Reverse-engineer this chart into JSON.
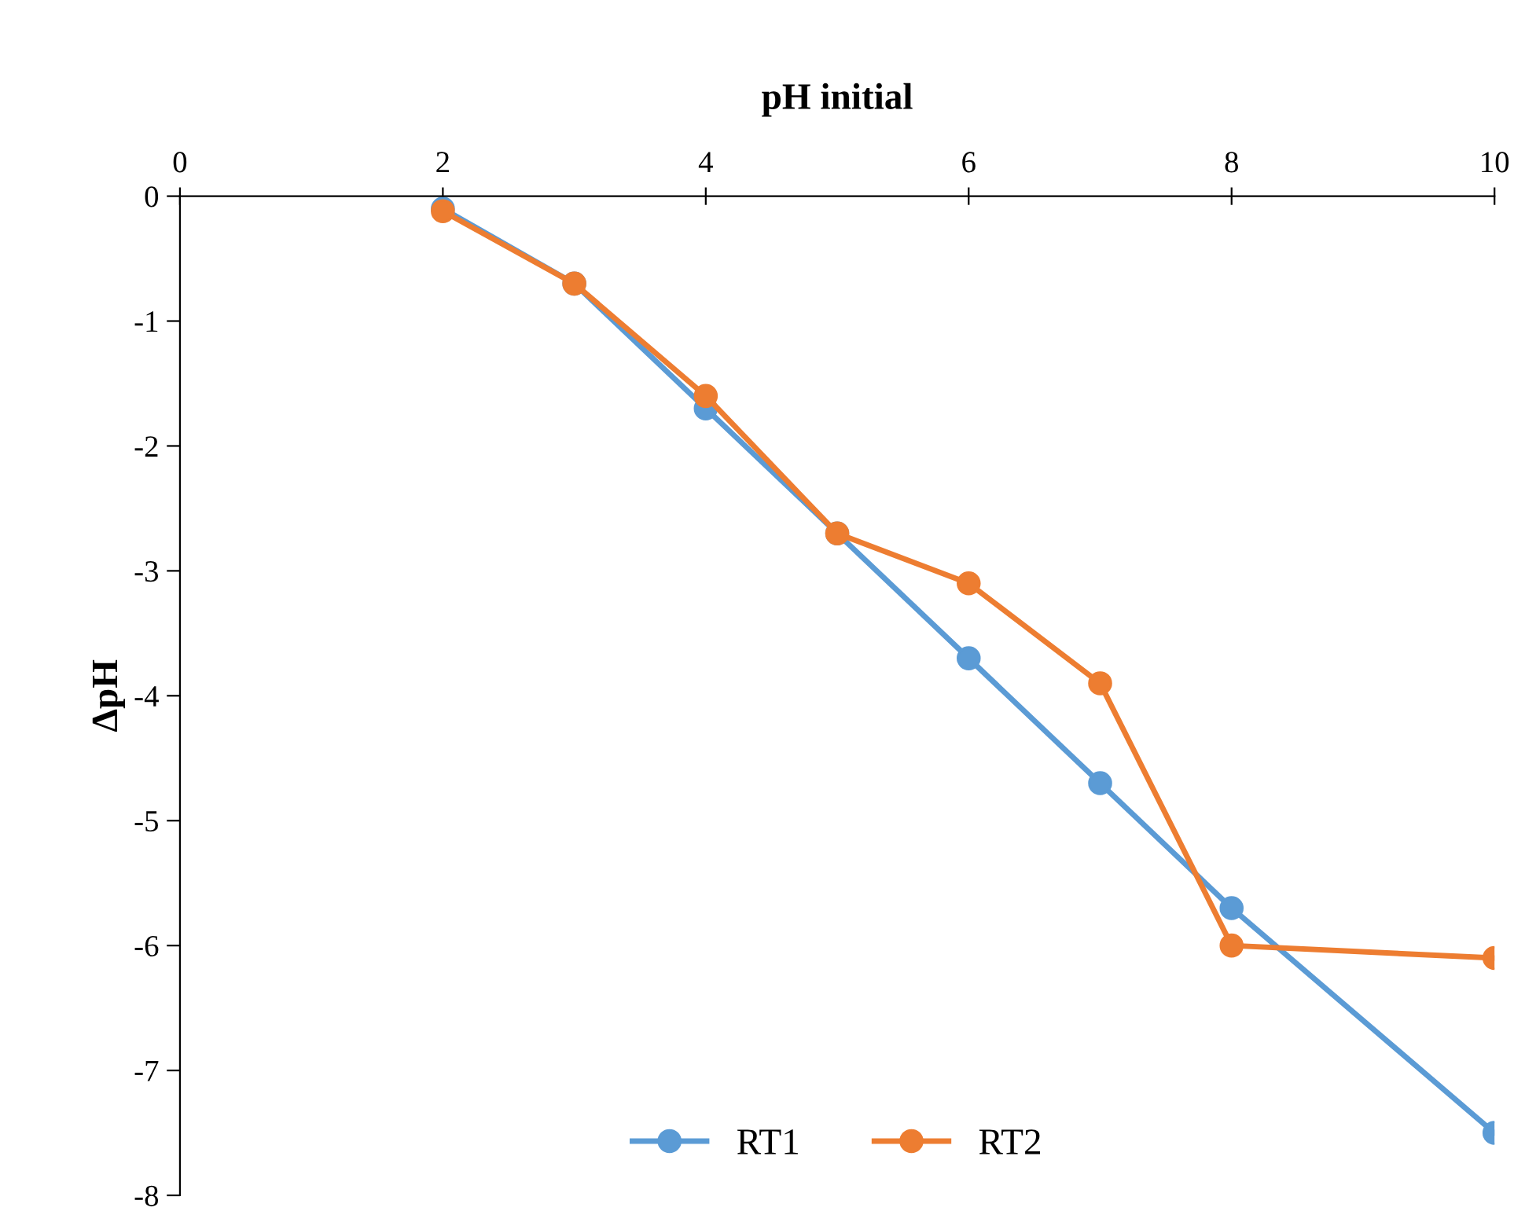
{
  "chart_data": {
    "type": "line",
    "xlabel": "pH initial",
    "ylabel": "ΔpH",
    "xlim": [
      0,
      10
    ],
    "xticks": [
      0,
      2,
      4,
      6,
      8,
      10
    ],
    "ylim": [
      -8,
      0
    ],
    "yticks": [
      -8,
      -7,
      -6,
      -5,
      -4,
      -3,
      -2,
      -1,
      0
    ],
    "x": [
      2,
      3,
      4,
      5,
      6,
      7,
      8,
      10
    ],
    "series": [
      {
        "name": "RT1",
        "color": "#5b9bd5",
        "values": [
          -0.1,
          -0.7,
          -1.7,
          -2.7,
          -3.7,
          -4.7,
          -5.7,
          -7.5
        ]
      },
      {
        "name": "RT2",
        "color": "#ed7d31",
        "values": [
          -0.12,
          -0.7,
          -1.6,
          -2.7,
          -3.1,
          -3.9,
          -6.0,
          -6.1
        ]
      }
    ],
    "marker": "circle",
    "line_style": "solid",
    "grid": false,
    "legend": "bottom"
  }
}
